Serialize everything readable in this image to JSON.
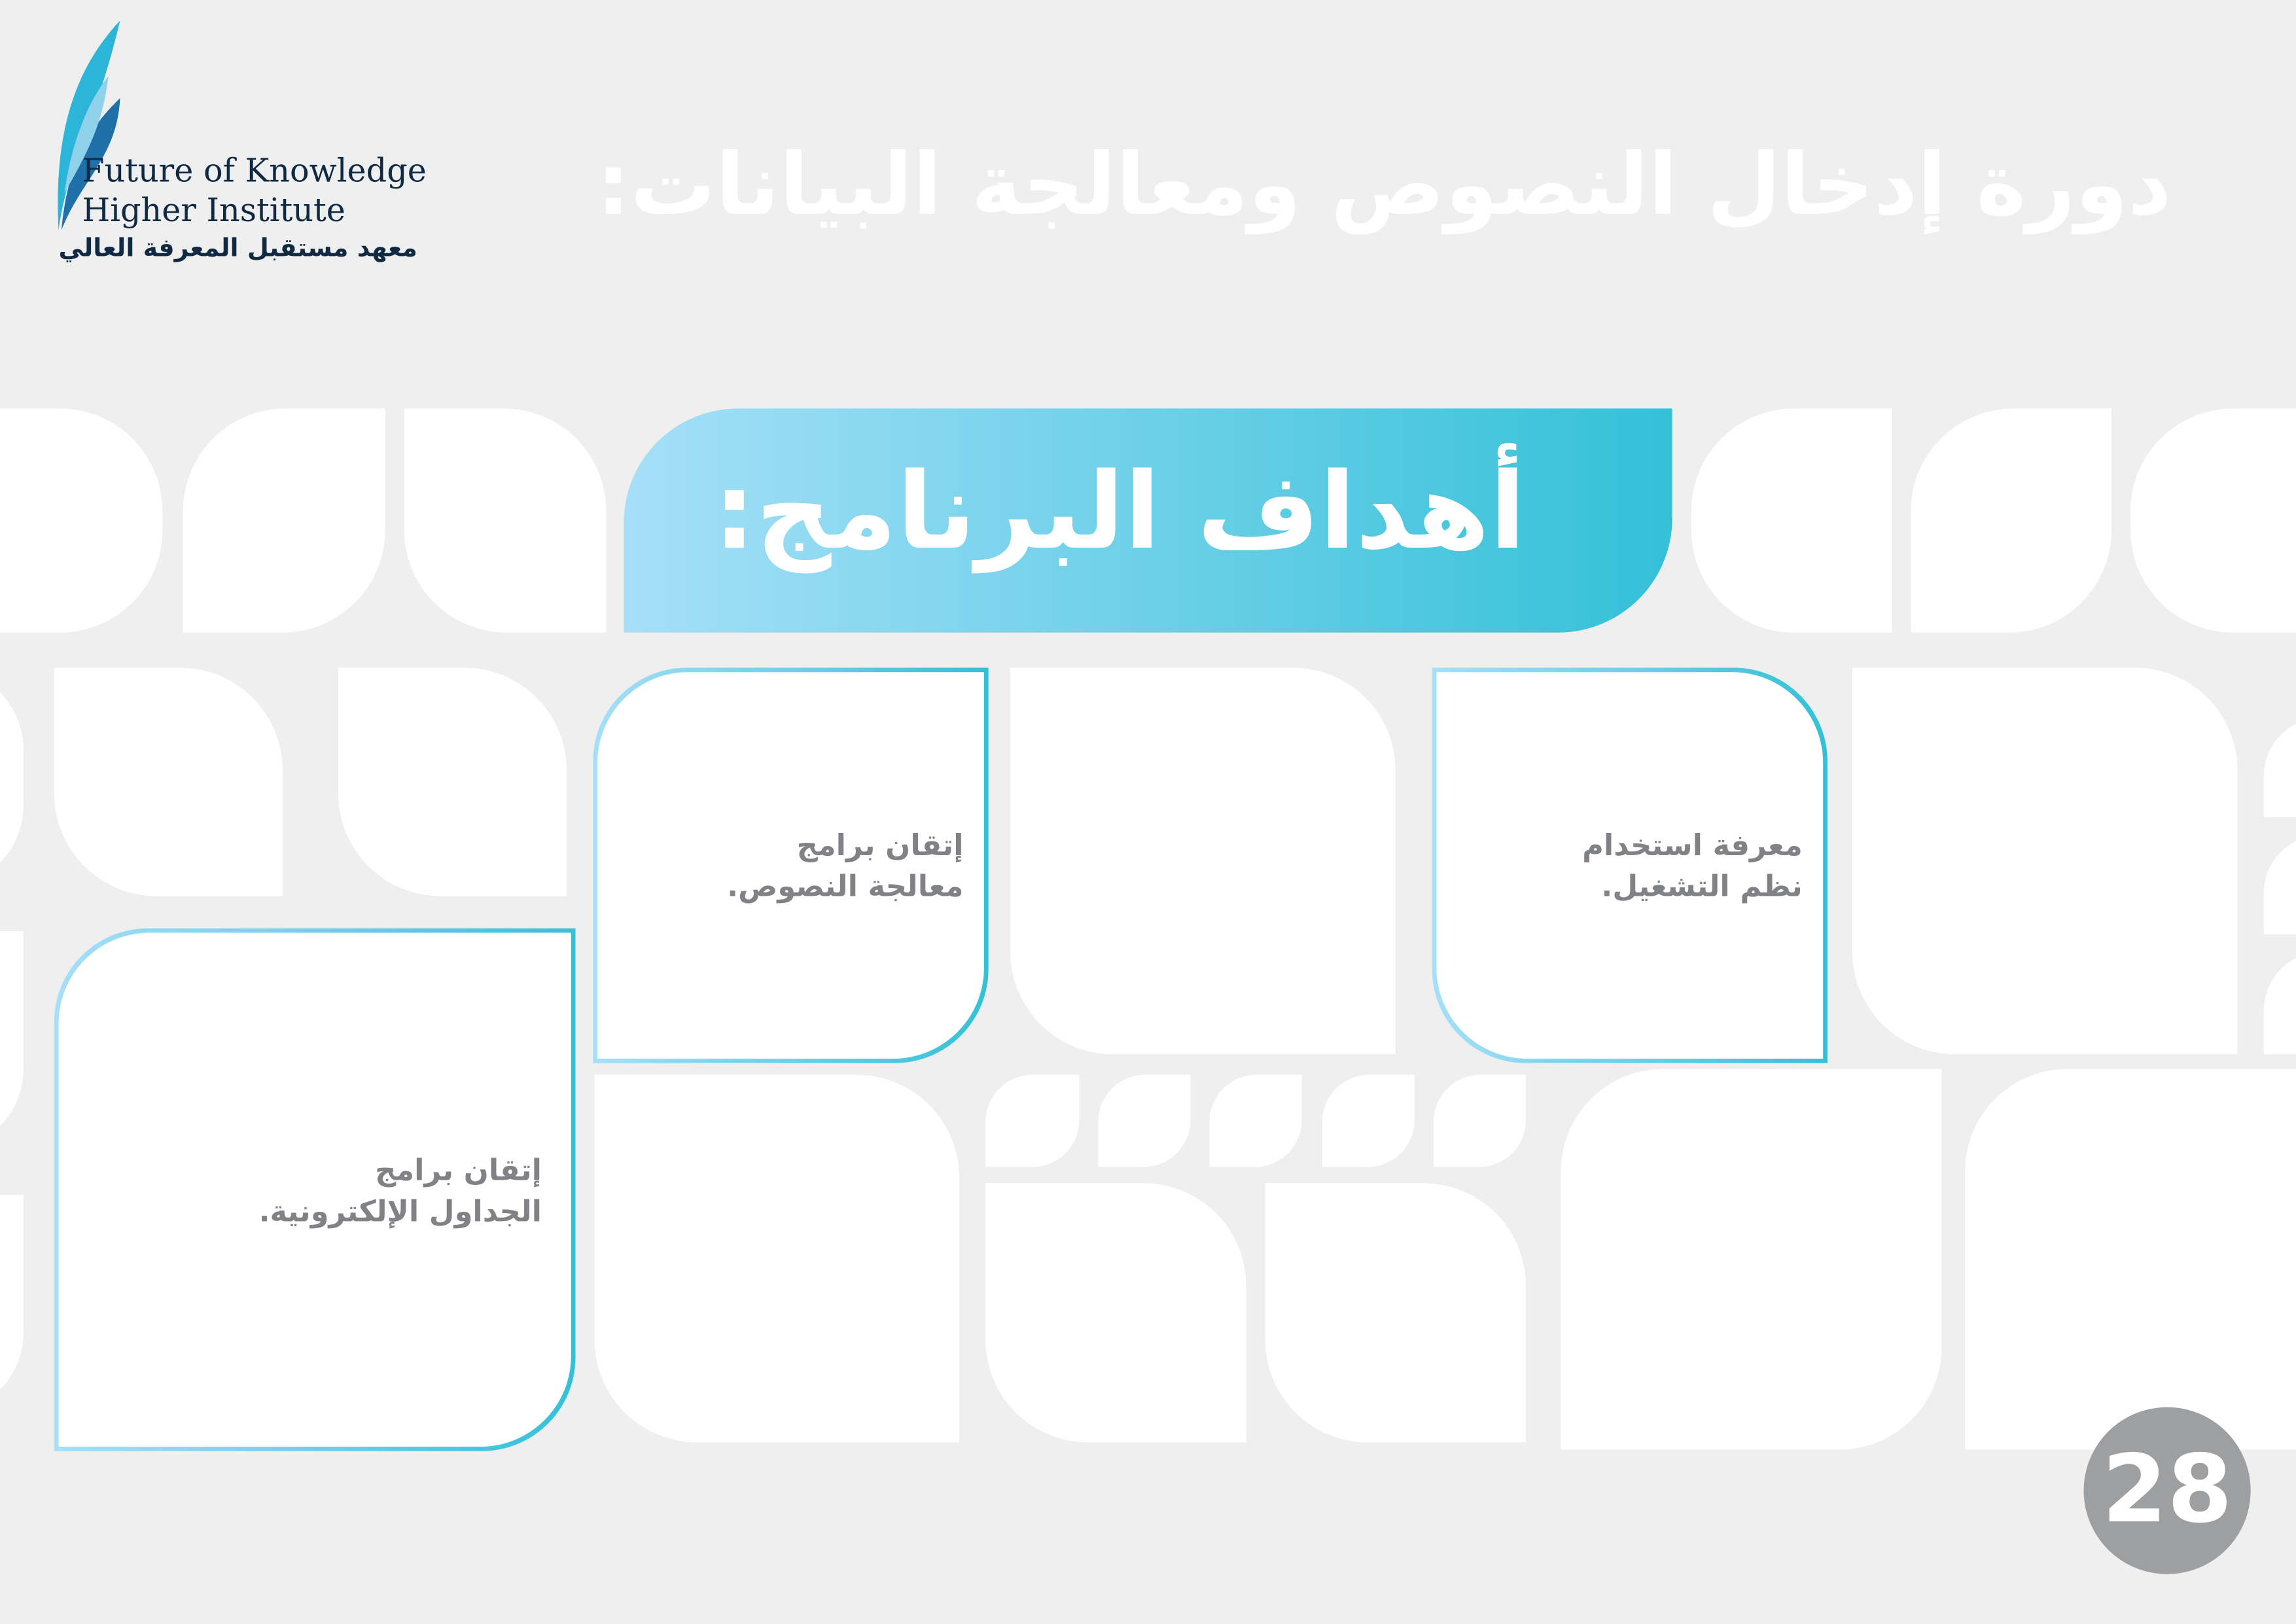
{
  "logo": {
    "name_en_line1": "Future of Knowledge",
    "name_en_line2": "Higher Institute",
    "name_ar": "معهد مستقبل المعرفة العالي",
    "icon": "feather-quill-icon",
    "colors": [
      "#2bb5d8",
      "#1f6fa8",
      "#102a43"
    ]
  },
  "header": {
    "title": "دورة إدخال النصوص ومعالجة البيانات:"
  },
  "banner": {
    "title": "أهداف البرنامج:",
    "gradient": [
      "#a6dff8",
      "#33c1d8"
    ]
  },
  "goals": [
    {
      "text": "معرفة استخدام\nنظم التشغيل."
    },
    {
      "text": "إتقان برامج\nمعالجة النصوص."
    },
    {
      "text": "إتقان برامج\nالجداول الإلكترونية."
    }
  ],
  "page_number": "28",
  "colors": {
    "background": "#eeefee",
    "text_gray": "#808285",
    "badge": "#9e9fa1"
  }
}
